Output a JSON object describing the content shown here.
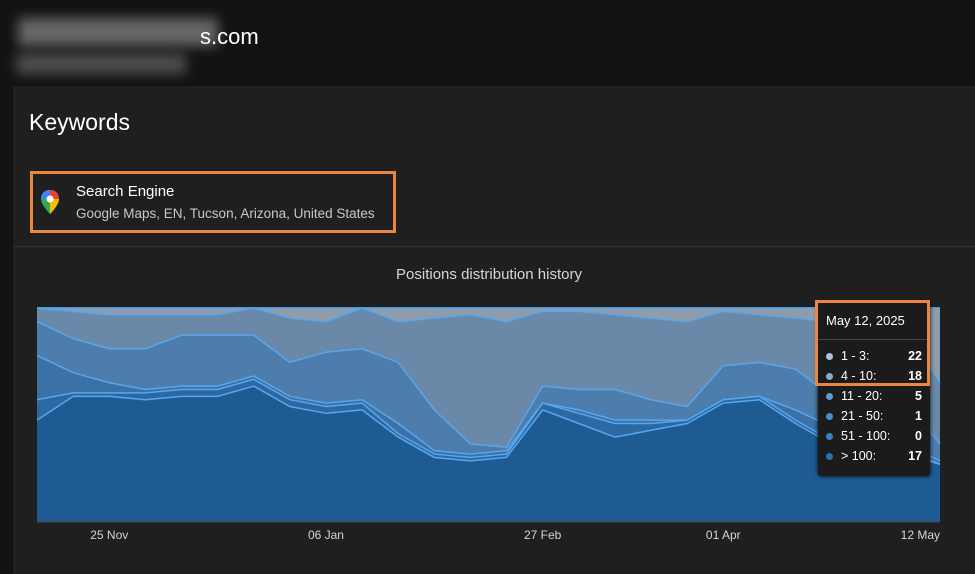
{
  "header": {
    "site": "s.com"
  },
  "card": {
    "title": "Keywords",
    "engine": {
      "name": "Search Engine",
      "details": "Google Maps, EN, Tucson, Arizona, United States"
    }
  },
  "chart_data": {
    "type": "stacked-area",
    "title": "Positions distribution history",
    "categories": [
      null,
      null,
      "25 Nov",
      null,
      null,
      null,
      null,
      null,
      "06 Jan",
      null,
      null,
      null,
      null,
      null,
      "27 Feb",
      null,
      null,
      null,
      null,
      "01 Apr",
      null,
      null,
      null,
      null,
      null,
      "12 May"
    ],
    "series": [
      {
        "name": "1 - 3:",
        "color": "#8e9cab",
        "values": [
          0,
          1,
          2,
          2,
          2,
          2,
          0,
          3,
          4,
          0,
          4,
          3,
          2,
          4,
          1,
          1,
          2,
          3,
          4,
          1,
          2,
          3,
          4,
          5,
          6,
          22
        ]
      },
      {
        "name": "4 - 10:",
        "color": "#6a88a7",
        "values": [
          4,
          8,
          10,
          10,
          6,
          6,
          8,
          13,
          9,
          12,
          12,
          27,
          38,
          37,
          22,
          23,
          22,
          24,
          25,
          16,
          14,
          15,
          22,
          23,
          21,
          18
        ]
      },
      {
        "name": "11 - 20:",
        "color": "#4c7dad",
        "values": [
          10,
          10,
          10,
          12,
          15,
          15,
          12,
          10,
          15,
          15,
          18,
          12,
          3,
          1,
          5,
          6,
          9,
          6,
          4,
          10,
          10,
          12,
          9,
          9,
          13,
          5
        ]
      },
      {
        "name": "21 - 50:",
        "color": "#3b71a6",
        "values": [
          13,
          6,
          3,
          1,
          1,
          1,
          1,
          1,
          1,
          1,
          3,
          1,
          1,
          1,
          0,
          1,
          1,
          1,
          0,
          0,
          0,
          3,
          4,
          3,
          1,
          1
        ]
      },
      {
        "name": "51 - 100:",
        "color": "#2c69a2",
        "values": [
          6,
          1,
          1,
          2,
          2,
          2,
          2,
          2,
          2,
          2,
          1,
          1,
          1,
          1,
          2,
          3,
          4,
          2,
          1,
          1,
          1,
          1,
          1,
          1,
          2,
          0
        ]
      },
      {
        "name": "> 100:",
        "color": "#1f5b93",
        "values": [
          30,
          37,
          37,
          36,
          37,
          37,
          40,
          34,
          32,
          33,
          25,
          19,
          18,
          19,
          33,
          29,
          25,
          27,
          29,
          35,
          36,
          29,
          23,
          22,
          20,
          17
        ]
      }
    ],
    "tooltip": {
      "date": "May 12, 2025",
      "index": 25
    }
  }
}
